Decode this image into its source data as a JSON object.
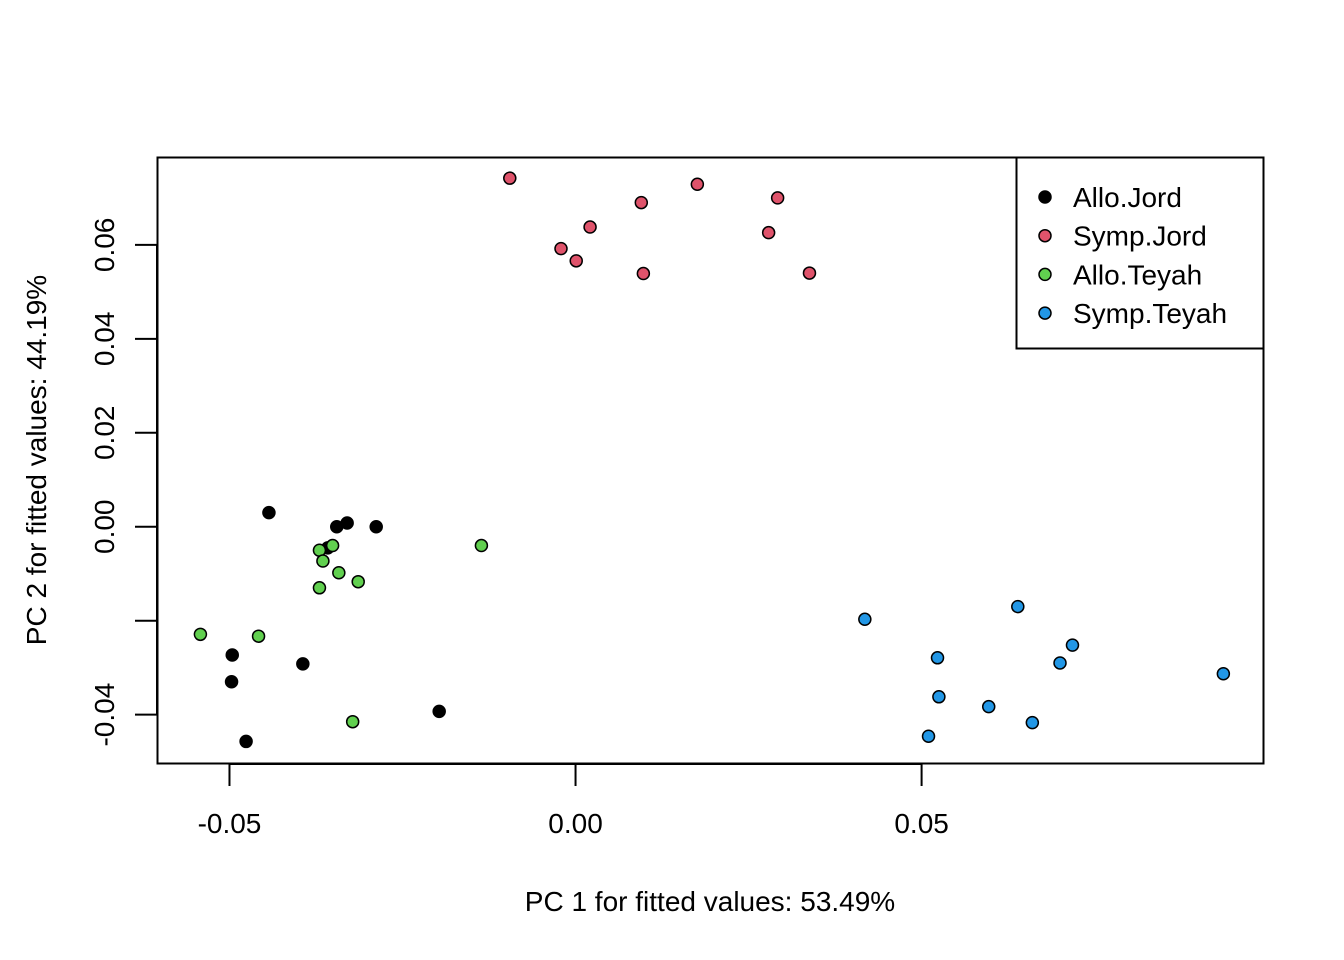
{
  "chart_data": {
    "type": "scatter",
    "title": "",
    "xlabel": "PC 1 for fitted values: 53.49%",
    "ylabel": "PC 2 for fitted values: 44.19%",
    "xlim": [
      -0.0604,
      0.0994
    ],
    "ylim": [
      -0.0504,
      0.0786
    ],
    "x_ticks": [
      {
        "value": -0.05,
        "label": "-0.05"
      },
      {
        "value": 0.0,
        "label": "0.00"
      },
      {
        "value": 0.05,
        "label": "0.05"
      }
    ],
    "y_ticks": [
      {
        "value": -0.04,
        "label": "-0.04"
      },
      {
        "value": -0.02,
        "label": ""
      },
      {
        "value": 0.0,
        "label": "0.00"
      },
      {
        "value": 0.02,
        "label": "0.02"
      },
      {
        "value": 0.04,
        "label": "0.04"
      },
      {
        "value": 0.06,
        "label": "0.06"
      }
    ],
    "grid": false,
    "legend_position": "top-right",
    "series": [
      {
        "name": "Allo.Jord",
        "color": "#000000",
        "points": [
          {
            "x": -0.0443,
            "y": 0.003
          },
          {
            "x": -0.0345,
            "y": 0.0
          },
          {
            "x": -0.033,
            "y": 0.0008
          },
          {
            "x": -0.0288,
            "y": 0.0
          },
          {
            "x": -0.0358,
            "y": -0.0045
          },
          {
            "x": -0.0496,
            "y": -0.0273
          },
          {
            "x": -0.0497,
            "y": -0.033
          },
          {
            "x": -0.0394,
            "y": -0.0292
          },
          {
            "x": -0.0476,
            "y": -0.0457
          },
          {
            "x": -0.0197,
            "y": -0.0393
          }
        ]
      },
      {
        "name": "Symp.Jord",
        "color": "#DF536B",
        "points": [
          {
            "x": -0.0095,
            "y": 0.0742
          },
          {
            "x": 0.0176,
            "y": 0.0729
          },
          {
            "x": 0.0292,
            "y": 0.07
          },
          {
            "x": 0.0095,
            "y": 0.069
          },
          {
            "x": 0.0021,
            "y": 0.0638
          },
          {
            "x": 0.0279,
            "y": 0.0626
          },
          {
            "x": -0.0021,
            "y": 0.0592
          },
          {
            "x": 0.0001,
            "y": 0.0566
          },
          {
            "x": 0.0098,
            "y": 0.0539
          },
          {
            "x": 0.0338,
            "y": 0.054
          }
        ]
      },
      {
        "name": "Allo.Teyah",
        "color": "#61D04F",
        "points": [
          {
            "x": -0.037,
            "y": -0.005
          },
          {
            "x": -0.0351,
            "y": -0.004
          },
          {
            "x": -0.0365,
            "y": -0.0073
          },
          {
            "x": -0.0342,
            "y": -0.0098
          },
          {
            "x": -0.0314,
            "y": -0.0117
          },
          {
            "x": -0.037,
            "y": -0.013
          },
          {
            "x": -0.0136,
            "y": -0.004
          },
          {
            "x": -0.0542,
            "y": -0.0229
          },
          {
            "x": -0.0458,
            "y": -0.0233
          },
          {
            "x": -0.0322,
            "y": -0.0415
          }
        ]
      },
      {
        "name": "Symp.Teyah",
        "color": "#2297E6",
        "points": [
          {
            "x": 0.0418,
            "y": -0.0197
          },
          {
            "x": 0.0639,
            "y": -0.017
          },
          {
            "x": 0.0718,
            "y": -0.0252
          },
          {
            "x": 0.07,
            "y": -0.029
          },
          {
            "x": 0.0523,
            "y": -0.0279
          },
          {
            "x": 0.0936,
            "y": -0.0313
          },
          {
            "x": 0.0525,
            "y": -0.0362
          },
          {
            "x": 0.0597,
            "y": -0.0383
          },
          {
            "x": 0.066,
            "y": -0.0417
          },
          {
            "x": 0.051,
            "y": -0.0446
          }
        ]
      }
    ]
  }
}
